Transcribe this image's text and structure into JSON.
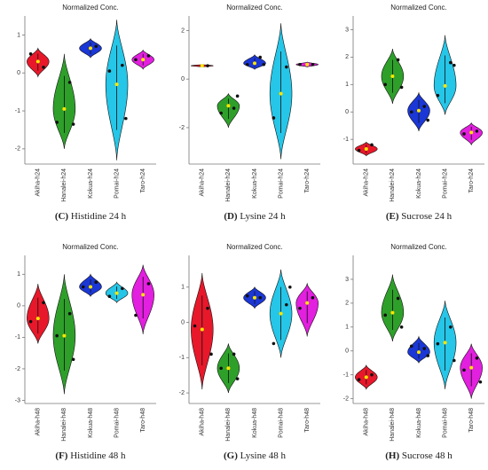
{
  "chart_data": [
    {
      "type": "violin",
      "title": "Normalized Conc.",
      "caption_label": "(C)",
      "caption": "Histidine 24 h",
      "ylim": [
        -2.4,
        1.5
      ],
      "yticks": [
        -2,
        -1,
        0,
        1
      ],
      "series": [
        {
          "name": "Akiha-h24",
          "color": "#e8182a",
          "extent": [
            -0.1,
            0.65
          ],
          "mean": 0.3,
          "values": [
            0.15,
            0.5
          ]
        },
        {
          "name": "Hanalei-h24",
          "color": "#2ea02a",
          "extent": [
            -2.0,
            0.5
          ],
          "mean": -0.95,
          "values": [
            -0.25,
            -1.3,
            -1.35
          ]
        },
        {
          "name": "Kokua-h24",
          "color": "#1b37d6",
          "extent": [
            0.4,
            0.9
          ],
          "mean": 0.65,
          "values": [
            0.7
          ]
        },
        {
          "name": "Pomai-h24",
          "color": "#25c6e8",
          "extent": [
            -2.3,
            1.4
          ],
          "mean": -0.3,
          "values": [
            0.2,
            0.05,
            -1.2
          ]
        },
        {
          "name": "Taro-h24",
          "color": "#e31fe0",
          "extent": [
            0.1,
            0.6
          ],
          "mean": 0.35,
          "values": [
            0.45,
            0.35
          ]
        }
      ]
    },
    {
      "type": "violin",
      "title": "Normalized Conc.",
      "caption_label": "(D)",
      "caption": "Lysine 24 h",
      "ylim": [
        -3.5,
        2.6
      ],
      "yticks": [
        -2,
        0,
        2
      ],
      "series": [
        {
          "name": "Akiha-h24",
          "color": "#e8182a",
          "extent": [
            0.5,
            0.6
          ],
          "mean": 0.55,
          "values": [
            0.55
          ]
        },
        {
          "name": "Hanalei-h24",
          "color": "#2ea02a",
          "extent": [
            -2.0,
            -0.6
          ],
          "mean": -1.1,
          "values": [
            -1.2,
            -1.4,
            -0.7
          ]
        },
        {
          "name": "Kokua-h24",
          "color": "#1b37d6",
          "extent": [
            0.4,
            1.0
          ],
          "mean": 0.65,
          "values": [
            0.9,
            0.6,
            0.6
          ]
        },
        {
          "name": "Pomai-h24",
          "color": "#25c6e8",
          "extent": [
            -3.3,
            2.3
          ],
          "mean": -0.6,
          "values": [
            0.5,
            -1.6
          ]
        },
        {
          "name": "Taro-h24",
          "color": "#e31fe0",
          "extent": [
            0.5,
            0.7
          ],
          "mean": 0.6,
          "values": [
            0.6,
            0.6
          ]
        }
      ]
    },
    {
      "type": "violin",
      "title": "Normalized Conc.",
      "caption_label": "(E)",
      "caption": "Sucrose 24 h",
      "ylim": [
        -1.9,
        3.5
      ],
      "yticks": [
        -1,
        0,
        1,
        2,
        3
      ],
      "series": [
        {
          "name": "Akiha-h24",
          "color": "#e8182a",
          "extent": [
            -1.6,
            -1.1
          ],
          "mean": -1.35,
          "values": [
            -1.2,
            -1.4
          ]
        },
        {
          "name": "Hanalei-h24",
          "color": "#2ea02a",
          "extent": [
            0.3,
            2.3
          ],
          "mean": 1.3,
          "values": [
            1.9,
            1.0,
            0.9
          ]
        },
        {
          "name": "Kokua-h24",
          "color": "#1b37d6",
          "extent": [
            -0.7,
            0.7
          ],
          "mean": 0.05,
          "values": [
            0.2,
            0.0,
            -0.3
          ]
        },
        {
          "name": "Pomai-h24",
          "color": "#25c6e8",
          "extent": [
            -0.1,
            2.8
          ],
          "mean": 0.95,
          "values": [
            1.8,
            0.6,
            1.7
          ]
        },
        {
          "name": "Taro-h24",
          "color": "#e31fe0",
          "extent": [
            -1.2,
            -0.4
          ],
          "mean": -0.75,
          "values": [
            -0.7,
            -0.8
          ]
        }
      ]
    },
    {
      "type": "violin",
      "title": "Normalized Conc.",
      "caption_label": "(F)",
      "caption": "Histidine 48 h",
      "ylim": [
        -3.1,
        1.6
      ],
      "yticks": [
        -3,
        -2,
        -1,
        0,
        1
      ],
      "series": [
        {
          "name": "Akiha-h48",
          "color": "#e8182a",
          "extent": [
            -1.2,
            0.7
          ],
          "mean": -0.4,
          "values": [
            0.1,
            -0.5
          ]
        },
        {
          "name": "Hanalei-h48",
          "color": "#2ea02a",
          "extent": [
            -2.8,
            1.0
          ],
          "mean": -0.95,
          "values": [
            -0.25,
            -0.95,
            -1.7
          ]
        },
        {
          "name": "Kokua-h48",
          "color": "#1b37d6",
          "extent": [
            0.3,
            1.0
          ],
          "mean": 0.6,
          "values": [
            0.75,
            0.6
          ]
        },
        {
          "name": "Pomai-h48",
          "color": "#25c6e8",
          "extent": [
            0.1,
            0.75
          ],
          "mean": 0.4,
          "values": [
            0.55,
            0.3
          ]
        },
        {
          "name": "Taro-h48",
          "color": "#e31fe0",
          "extent": [
            -0.9,
            1.3
          ],
          "mean": 0.35,
          "values": [
            0.7,
            -0.3
          ]
        }
      ]
    },
    {
      "type": "violin",
      "title": "Normalized Conc.",
      "caption_label": "(G)",
      "caption": "Lysine 48 h",
      "ylim": [
        -2.3,
        1.9
      ],
      "yticks": [
        -2,
        -1,
        0,
        1
      ],
      "series": [
        {
          "name": "Akiha-h48",
          "color": "#e8182a",
          "extent": [
            -1.9,
            1.4
          ],
          "mean": -0.2,
          "values": [
            0.4,
            -0.1,
            -0.9
          ]
        },
        {
          "name": "Hanalei-h48",
          "color": "#2ea02a",
          "extent": [
            -2.0,
            -0.6
          ],
          "mean": -1.3,
          "values": [
            -0.9,
            -1.3,
            -1.6
          ]
        },
        {
          "name": "Kokua-h48",
          "color": "#1b37d6",
          "extent": [
            0.4,
            1.0
          ],
          "mean": 0.7,
          "values": [
            0.7,
            0.75
          ]
        },
        {
          "name": "Pomai-h48",
          "color": "#25c6e8",
          "extent": [
            -1.0,
            1.5
          ],
          "mean": 0.25,
          "values": [
            0.5,
            -0.6,
            1.0
          ]
        },
        {
          "name": "Taro-h48",
          "color": "#e31fe0",
          "extent": [
            -0.4,
            1.1
          ],
          "mean": 0.55,
          "values": [
            0.7,
            0.4
          ]
        }
      ]
    },
    {
      "type": "violin",
      "title": "Normalized Conc.",
      "caption_label": "(H)",
      "caption": "Sucrose 48 h",
      "ylim": [
        -2.2,
        4.0
      ],
      "yticks": [
        -2,
        -1,
        0,
        1,
        2,
        3
      ],
      "series": [
        {
          "name": "Akiha-h48",
          "color": "#e8182a",
          "extent": [
            -1.6,
            -0.6
          ],
          "mean": -1.1,
          "values": [
            -1.0,
            -1.2
          ]
        },
        {
          "name": "Hanalei-h48",
          "color": "#2ea02a",
          "extent": [
            0.4,
            3.2
          ],
          "mean": 1.6,
          "values": [
            2.2,
            1.5,
            1.0
          ]
        },
        {
          "name": "Kokua-h48",
          "color": "#1b37d6",
          "extent": [
            -0.5,
            0.6
          ],
          "mean": -0.05,
          "values": [
            0.1,
            0.2,
            -0.2
          ]
        },
        {
          "name": "Pomai-h48",
          "color": "#25c6e8",
          "extent": [
            -1.6,
            2.1
          ],
          "mean": 0.35,
          "values": [
            1.0,
            0.3,
            -0.4
          ]
        },
        {
          "name": "Taro-h48",
          "color": "#e31fe0",
          "extent": [
            -2.0,
            0.3
          ],
          "mean": -0.7,
          "values": [
            -0.3,
            -0.8,
            -1.3
          ]
        }
      ]
    }
  ]
}
